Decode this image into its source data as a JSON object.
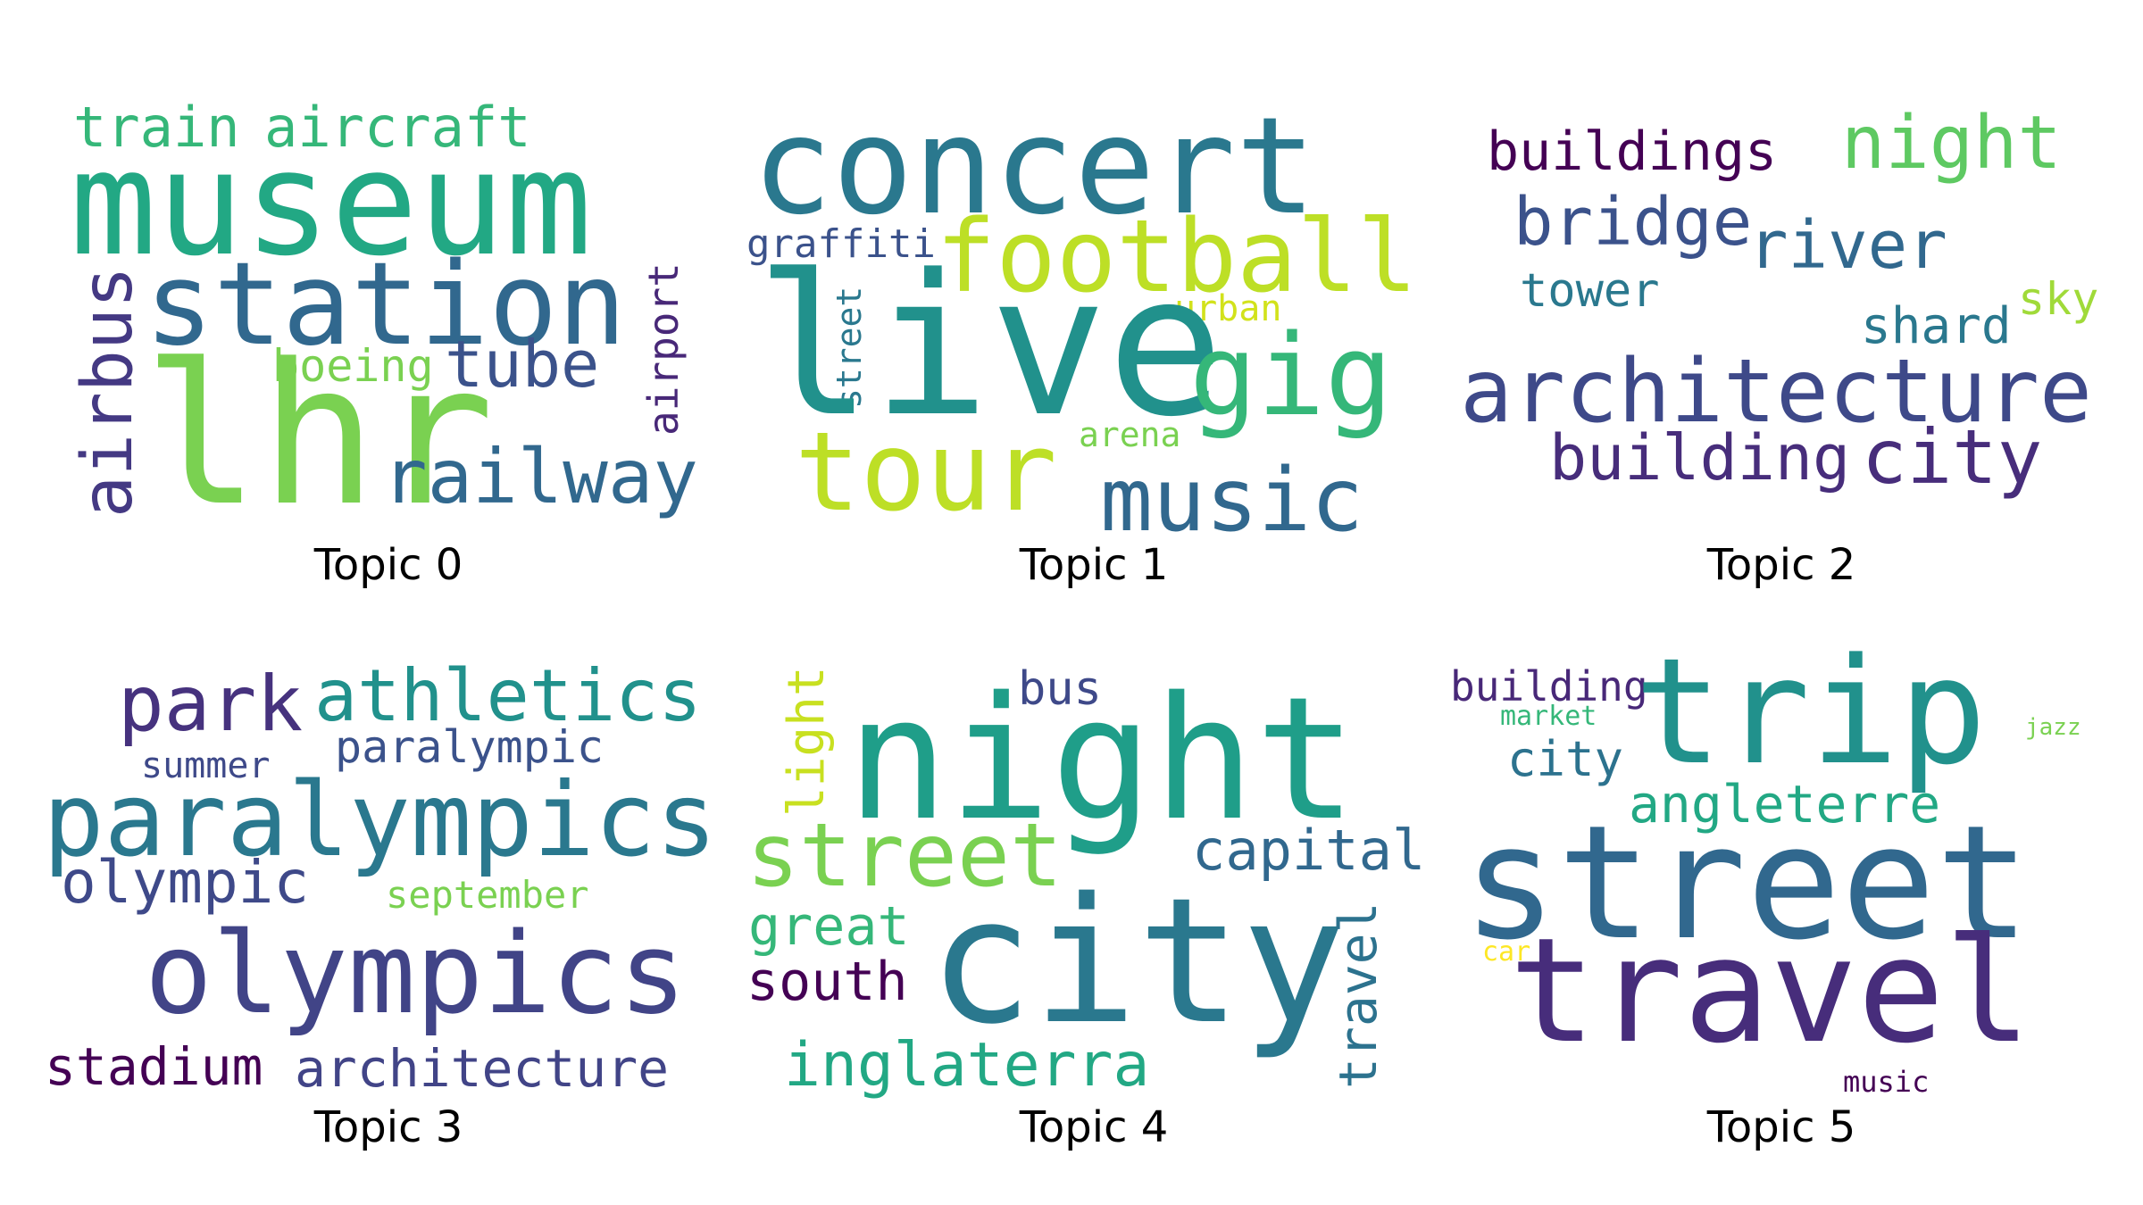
{
  "topics": [
    {
      "caption": "Topic 0",
      "words": [
        "train",
        "aircraft",
        "museum",
        "station",
        "airbus",
        "boeing",
        "tube",
        "airport",
        "lhr",
        "railway"
      ],
      "colors": [
        "#35b779",
        "#35b779",
        "#22a884",
        "#31688e",
        "#443983",
        "#7ad151",
        "#3b528b",
        "#482878",
        "#7ad151",
        "#31688e"
      ]
    },
    {
      "caption": "Topic 1",
      "words": [
        "concert",
        "graffiti",
        "football",
        "street",
        "urban",
        "live",
        "gig",
        "arena",
        "tour",
        "music"
      ],
      "colors": [
        "#2a788e",
        "#3b528b",
        "#bddf26",
        "#2a788e",
        "#d2e21b",
        "#21918c",
        "#35b779",
        "#7ad151",
        "#bddf26",
        "#31688e"
      ]
    },
    {
      "caption": "Topic 2",
      "words": [
        "buildings",
        "night",
        "bridge",
        "river",
        "tower",
        "sky",
        "shard",
        "architecture",
        "building",
        "city"
      ],
      "colors": [
        "#440154",
        "#5ec962",
        "#3b528b",
        "#31688e",
        "#2a788e",
        "#a0da39",
        "#2a788e",
        "#3e4989",
        "#472d7b",
        "#472d7b"
      ]
    },
    {
      "caption": "Topic 3",
      "words": [
        "park",
        "athletics",
        "summer",
        "paralympic",
        "paralympics",
        "olympic",
        "september",
        "olympics",
        "stadium",
        "architecture"
      ],
      "colors": [
        "#46327e",
        "#21918c",
        "#3e4989",
        "#3b528b",
        "#2a788e",
        "#3e4989",
        "#7ad151",
        "#414487",
        "#440154",
        "#414487"
      ]
    },
    {
      "caption": "Topic 4",
      "words": [
        "light",
        "bus",
        "night",
        "street",
        "capital",
        "great",
        "south",
        "city",
        "travel",
        "inglaterra"
      ],
      "colors": [
        "#c8e020",
        "#3e4989",
        "#1f9e89",
        "#7ad151",
        "#31688e",
        "#35b779",
        "#440154",
        "#2a788e",
        "#2c728e",
        "#22a884"
      ]
    },
    {
      "caption": "Topic 5",
      "words": [
        "building",
        "market",
        "trip",
        "city",
        "jazz",
        "angleterre",
        "street",
        "car",
        "travel",
        "music"
      ],
      "colors": [
        "#482878",
        "#35b779",
        "#21918c",
        "#2c728e",
        "#7ad151",
        "#22a884",
        "#31688e",
        "#fde725",
        "#472d7b",
        "#440154"
      ]
    }
  ]
}
